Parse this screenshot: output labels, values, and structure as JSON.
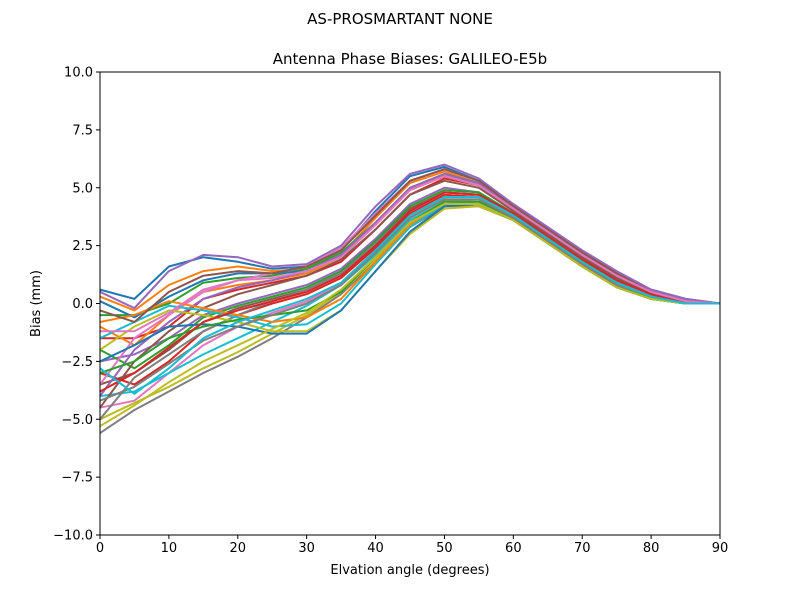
{
  "figure": {
    "suptitle": "AS-PROSMARTANT  NONE"
  },
  "chart_data": {
    "type": "line",
    "title": "Antenna Phase Biases: GALILEO-E5b",
    "xlabel": "Elvation angle (degrees)",
    "ylabel": "Bias (mm)",
    "xlim": [
      0,
      90
    ],
    "ylim": [
      -10,
      10
    ],
    "xticks": [
      0,
      10,
      20,
      30,
      40,
      50,
      60,
      70,
      80,
      90
    ],
    "yticks": [
      -10.0,
      -7.5,
      -5.0,
      -2.5,
      0.0,
      2.5,
      5.0,
      7.5,
      10.0
    ],
    "xtick_labels": [
      "0",
      "10",
      "20",
      "30",
      "40",
      "50",
      "60",
      "70",
      "80",
      "90"
    ],
    "ytick_labels": [
      "−10.0",
      "−7.5",
      "−5.0",
      "−2.5",
      "0.0",
      "2.5",
      "5.0",
      "7.5",
      "10.0"
    ],
    "grid": false,
    "legend": "none",
    "colors": [
      "#1f77b4",
      "#ff7f0e",
      "#2ca02c",
      "#d62728",
      "#9467bd",
      "#8c564b",
      "#e377c2",
      "#7f7f7f",
      "#bcbd22",
      "#17becf"
    ],
    "x": [
      0,
      5,
      10,
      15,
      20,
      25,
      30,
      35,
      40,
      45,
      50,
      55,
      60,
      65,
      70,
      75,
      80,
      85,
      90
    ],
    "series": [
      {
        "values": [
          0.6,
          0.2,
          1.6,
          2.0,
          1.8,
          1.5,
          1.6,
          2.3,
          4.0,
          5.5,
          5.9,
          5.3,
          4.2,
          3.2,
          2.2,
          1.3,
          0.6,
          0.2,
          0.0
        ]
      },
      {
        "values": [
          0.3,
          -0.3,
          0.8,
          1.4,
          1.6,
          1.4,
          1.5,
          2.1,
          3.7,
          5.2,
          5.7,
          5.2,
          4.1,
          3.1,
          2.1,
          1.2,
          0.5,
          0.1,
          0.0
        ]
      },
      {
        "values": [
          -0.5,
          -0.5,
          0.0,
          0.9,
          1.1,
          1.2,
          1.5,
          2.2,
          3.5,
          5.0,
          5.6,
          5.2,
          4.2,
          3.2,
          2.2,
          1.3,
          0.5,
          0.1,
          0.0
        ]
      },
      {
        "values": [
          -1.5,
          -1.5,
          -1.0,
          0.2,
          0.6,
          0.9,
          1.2,
          1.8,
          3.2,
          4.7,
          5.4,
          5.1,
          4.1,
          3.1,
          2.1,
          1.2,
          0.5,
          0.1,
          0.0
        ]
      },
      {
        "values": [
          -2.5,
          -2.2,
          -1.5,
          -0.5,
          0.0,
          0.4,
          0.8,
          1.5,
          2.8,
          4.3,
          5.0,
          4.8,
          3.9,
          3.0,
          2.0,
          1.1,
          0.4,
          0.1,
          0.0
        ]
      },
      {
        "values": [
          -3.5,
          -3.0,
          -2.0,
          -0.8,
          -0.2,
          0.2,
          0.6,
          1.3,
          2.6,
          4.1,
          4.8,
          4.7,
          3.9,
          2.9,
          1.9,
          1.0,
          0.4,
          0.0,
          0.0
        ]
      },
      {
        "values": [
          -4.5,
          -4.2,
          -3.0,
          -1.8,
          -1.0,
          -0.4,
          0.1,
          0.9,
          2.3,
          3.7,
          4.5,
          4.4,
          3.7,
          2.8,
          1.8,
          0.9,
          0.3,
          0.0,
          0.0
        ]
      },
      {
        "values": [
          -5.6,
          -4.6,
          -3.8,
          -3.0,
          -2.3,
          -1.5,
          -0.6,
          0.4,
          1.8,
          3.3,
          4.2,
          4.2,
          3.6,
          2.6,
          1.6,
          0.8,
          0.2,
          0.0,
          0.0
        ]
      },
      {
        "values": [
          -5.0,
          -4.3,
          -3.6,
          -2.8,
          -2.1,
          -1.3,
          -0.5,
          0.5,
          1.9,
          3.4,
          4.3,
          4.3,
          3.6,
          2.6,
          1.6,
          0.7,
          0.2,
          0.0,
          0.0
        ]
      },
      {
        "values": [
          -4.0,
          -3.8,
          -3.0,
          -2.2,
          -1.5,
          -0.8,
          -0.1,
          0.8,
          2.1,
          3.6,
          4.4,
          4.4,
          3.7,
          2.7,
          1.7,
          0.8,
          0.3,
          0.0,
          0.0
        ]
      },
      {
        "values": [
          0.1,
          -0.6,
          0.3,
          1.0,
          1.3,
          1.3,
          1.4,
          2.0,
          3.4,
          4.9,
          5.5,
          5.1,
          4.1,
          3.1,
          2.1,
          1.2,
          0.5,
          0.1,
          0.0
        ]
      },
      {
        "values": [
          -1.0,
          -1.8,
          -0.5,
          0.5,
          0.8,
          1.0,
          1.3,
          2.0,
          3.4,
          4.9,
          5.5,
          5.1,
          4.1,
          3.1,
          2.1,
          1.2,
          0.5,
          0.1,
          0.0
        ]
      },
      {
        "values": [
          -2.0,
          -2.8,
          -1.8,
          -0.6,
          -0.1,
          0.3,
          0.7,
          1.4,
          2.7,
          4.2,
          4.9,
          4.8,
          3.9,
          2.9,
          1.9,
          1.0,
          0.4,
          0.0,
          0.0
        ]
      },
      {
        "values": [
          -3.0,
          -3.5,
          -2.5,
          -1.2,
          -0.5,
          0.0,
          0.4,
          1.1,
          2.4,
          3.9,
          4.7,
          4.6,
          3.8,
          2.8,
          1.8,
          0.9,
          0.3,
          0.0,
          0.0
        ]
      },
      {
        "values": [
          -4.0,
          -2.0,
          -0.8,
          0.2,
          0.7,
          1.0,
          1.4,
          2.1,
          3.5,
          5.0,
          5.6,
          5.2,
          4.2,
          3.2,
          2.2,
          1.3,
          0.5,
          0.1,
          0.0
        ]
      },
      {
        "values": [
          -4.5,
          -2.5,
          -1.2,
          -0.2,
          0.4,
          0.8,
          1.2,
          1.9,
          3.2,
          4.7,
          5.3,
          5.0,
          4.0,
          3.0,
          2.0,
          1.1,
          0.4,
          0.1,
          0.0
        ]
      },
      {
        "values": [
          -3.5,
          -1.5,
          -0.5,
          0.5,
          1.0,
          1.3,
          1.6,
          2.4,
          3.9,
          5.3,
          5.8,
          5.3,
          4.2,
          3.2,
          2.2,
          1.3,
          0.5,
          0.1,
          0.0
        ]
      },
      {
        "values": [
          -5.0,
          -3.2,
          -2.2,
          -1.2,
          -0.5,
          0.1,
          0.6,
          1.3,
          2.6,
          4.0,
          4.8,
          4.7,
          3.8,
          2.8,
          1.8,
          0.9,
          0.3,
          0.0,
          0.0
        ]
      },
      {
        "values": [
          -2.0,
          -1.0,
          -0.3,
          -0.5,
          -0.8,
          -1.2,
          -1.2,
          -0.3,
          1.4,
          3.0,
          4.1,
          4.2,
          3.6,
          2.6,
          1.6,
          0.7,
          0.2,
          0.0,
          0.0
        ]
      },
      {
        "values": [
          -1.5,
          -0.8,
          -0.1,
          -0.3,
          -0.6,
          -1.0,
          -0.9,
          0.0,
          1.7,
          3.3,
          4.3,
          4.4,
          3.7,
          2.7,
          1.7,
          0.8,
          0.2,
          0.0,
          0.0
        ]
      },
      {
        "values": [
          -2.5,
          -1.8,
          -1.0,
          -0.9,
          -1.0,
          -1.3,
          -1.3,
          -0.3,
          1.4,
          3.1,
          4.2,
          4.3,
          3.6,
          2.6,
          1.6,
          0.7,
          0.2,
          0.0,
          0.0
        ]
      },
      {
        "values": [
          -0.8,
          -0.5,
          0.1,
          -0.2,
          -0.5,
          -0.8,
          -0.6,
          0.2,
          1.8,
          3.4,
          4.4,
          4.4,
          3.7,
          2.7,
          1.7,
          0.8,
          0.3,
          0.0,
          0.0
        ]
      },
      {
        "values": [
          -3.0,
          -2.5,
          -1.5,
          -1.0,
          -0.7,
          -0.5,
          -0.3,
          0.5,
          2.0,
          3.5,
          4.4,
          4.4,
          3.7,
          2.7,
          1.7,
          0.8,
          0.2,
          0.0,
          0.0
        ]
      },
      {
        "values": [
          -3.8,
          -3.0,
          -1.9,
          -0.8,
          -0.3,
          0.1,
          0.5,
          1.2,
          2.5,
          4.0,
          4.8,
          4.7,
          3.9,
          2.9,
          1.9,
          1.0,
          0.4,
          0.0,
          0.0
        ]
      },
      {
        "values": [
          0.5,
          -0.2,
          1.4,
          2.1,
          2.0,
          1.6,
          1.7,
          2.5,
          4.2,
          5.6,
          6.0,
          5.4,
          4.3,
          3.3,
          2.3,
          1.4,
          0.6,
          0.2,
          0.0
        ]
      },
      {
        "values": [
          -0.3,
          -0.8,
          0.5,
          1.2,
          1.4,
          1.3,
          1.6,
          2.3,
          3.8,
          5.3,
          5.8,
          5.3,
          4.2,
          3.2,
          2.2,
          1.3,
          0.5,
          0.1,
          0.0
        ]
      },
      {
        "values": [
          -1.2,
          -1.2,
          -0.4,
          0.6,
          1.0,
          1.1,
          1.4,
          2.0,
          3.4,
          4.9,
          5.5,
          5.1,
          4.1,
          3.1,
          2.1,
          1.2,
          0.5,
          0.1,
          0.0
        ]
      },
      {
        "values": [
          -4.2,
          -3.6,
          -2.6,
          -1.6,
          -1.0,
          -0.5,
          0.0,
          0.8,
          2.2,
          3.7,
          4.5,
          4.5,
          3.7,
          2.7,
          1.7,
          0.8,
          0.3,
          0.0,
          0.0
        ]
      },
      {
        "values": [
          -5.3,
          -4.4,
          -3.4,
          -2.5,
          -1.8,
          -1.1,
          -0.4,
          0.6,
          2.0,
          3.5,
          4.3,
          4.3,
          3.6,
          2.6,
          1.6,
          0.7,
          0.2,
          0.0,
          0.0
        ]
      },
      {
        "values": [
          -2.8,
          -3.9,
          -2.8,
          -1.5,
          -0.8,
          -0.3,
          0.2,
          0.9,
          2.3,
          3.8,
          4.6,
          4.6,
          3.8,
          2.8,
          1.8,
          0.9,
          0.3,
          0.0,
          0.0
        ]
      }
    ]
  }
}
